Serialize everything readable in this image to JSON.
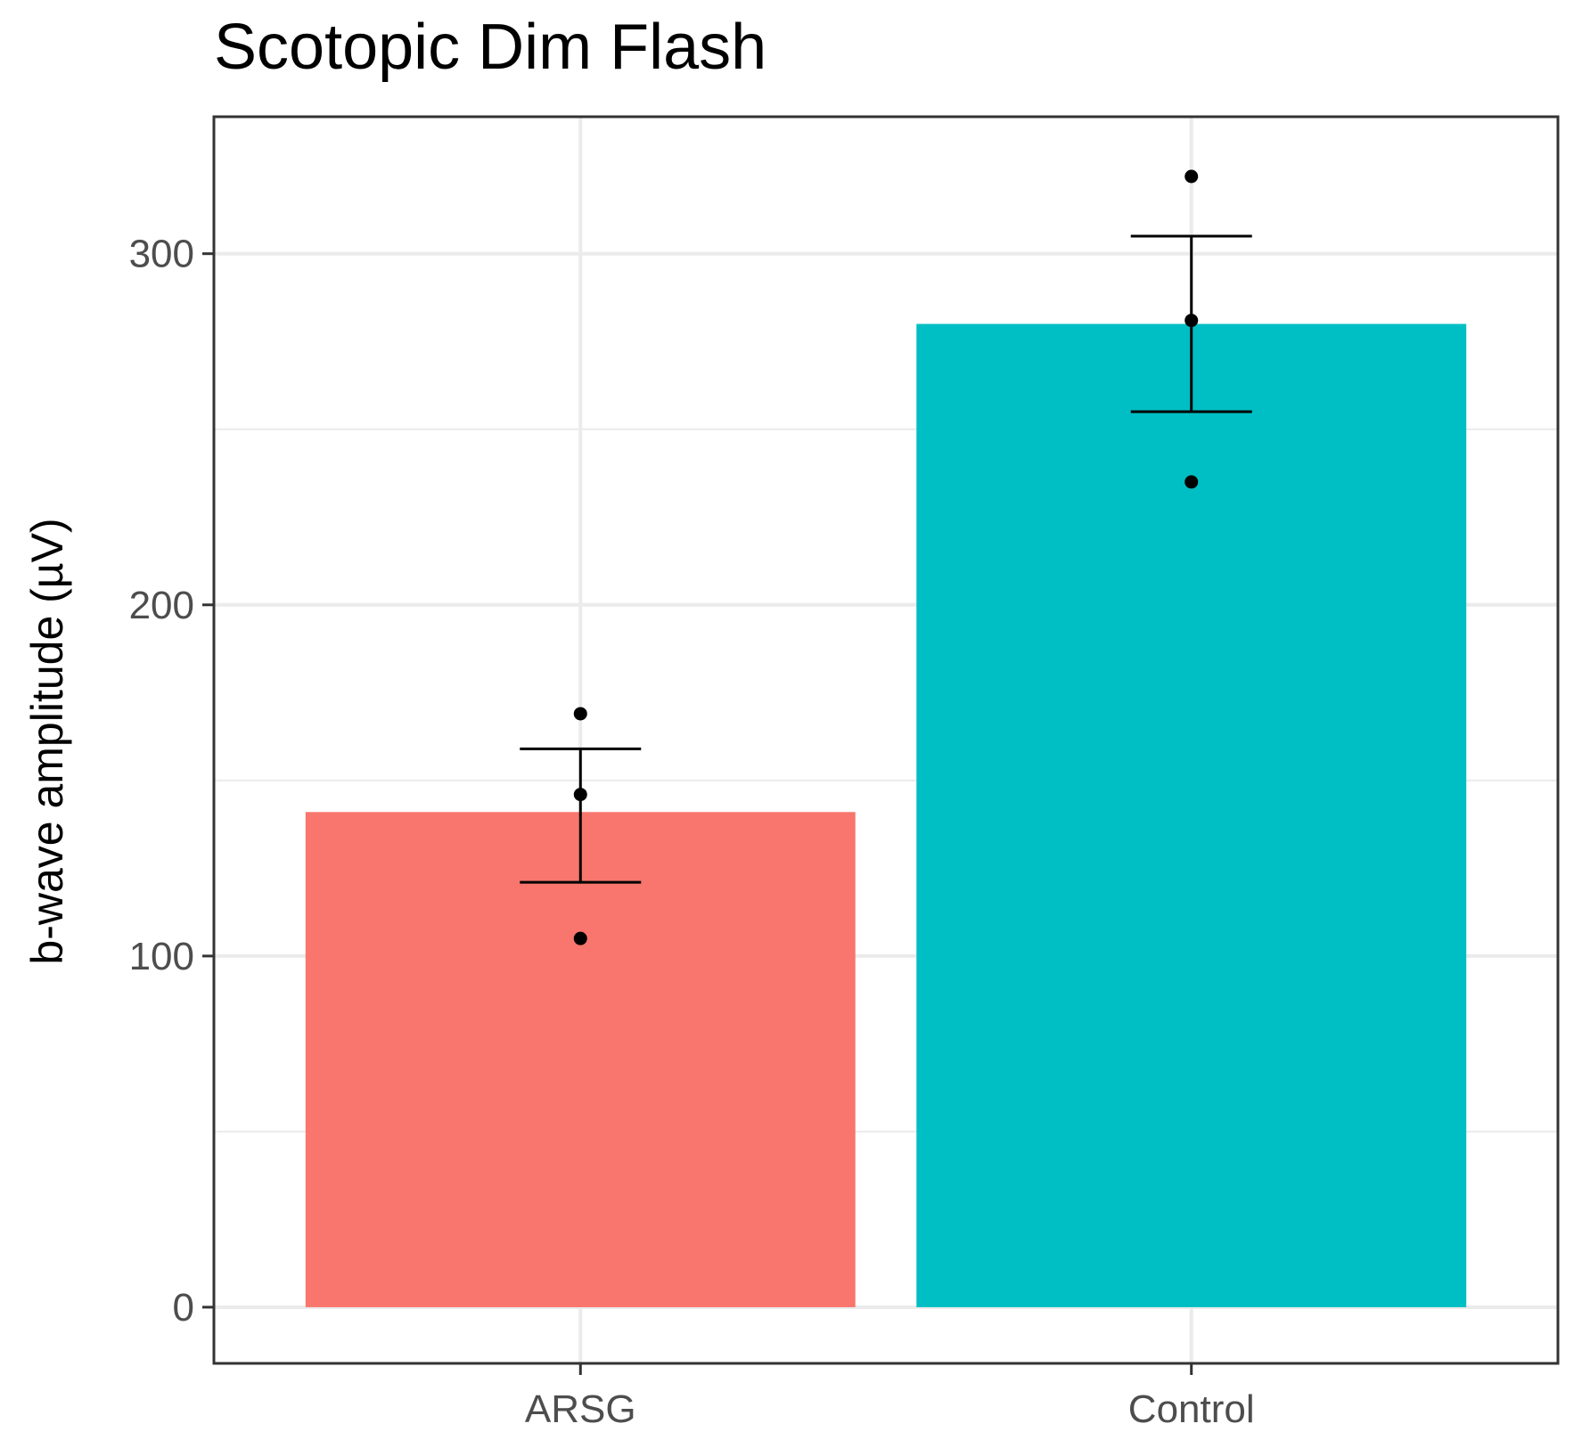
{
  "chart_data": {
    "type": "bar",
    "title": "Scotopic Dim Flash",
    "xlabel": "",
    "ylabel": "b-wave amplitude (µV)",
    "categories": [
      "ARSG",
      "Control"
    ],
    "values": [
      141,
      280
    ],
    "error_bars": [
      {
        "low": 121,
        "high": 159
      },
      {
        "low": 255,
        "high": 305
      }
    ],
    "points": [
      [
        169,
        146,
        105
      ],
      [
        322,
        281,
        235
      ]
    ],
    "colors": [
      "#F8766D",
      "#00BFC4"
    ],
    "ylim": [
      -16,
      339
    ],
    "yticks": [
      0,
      100,
      200,
      300
    ],
    "yticks_minor": [
      50,
      150,
      250
    ],
    "grid": true,
    "legend": "none"
  }
}
